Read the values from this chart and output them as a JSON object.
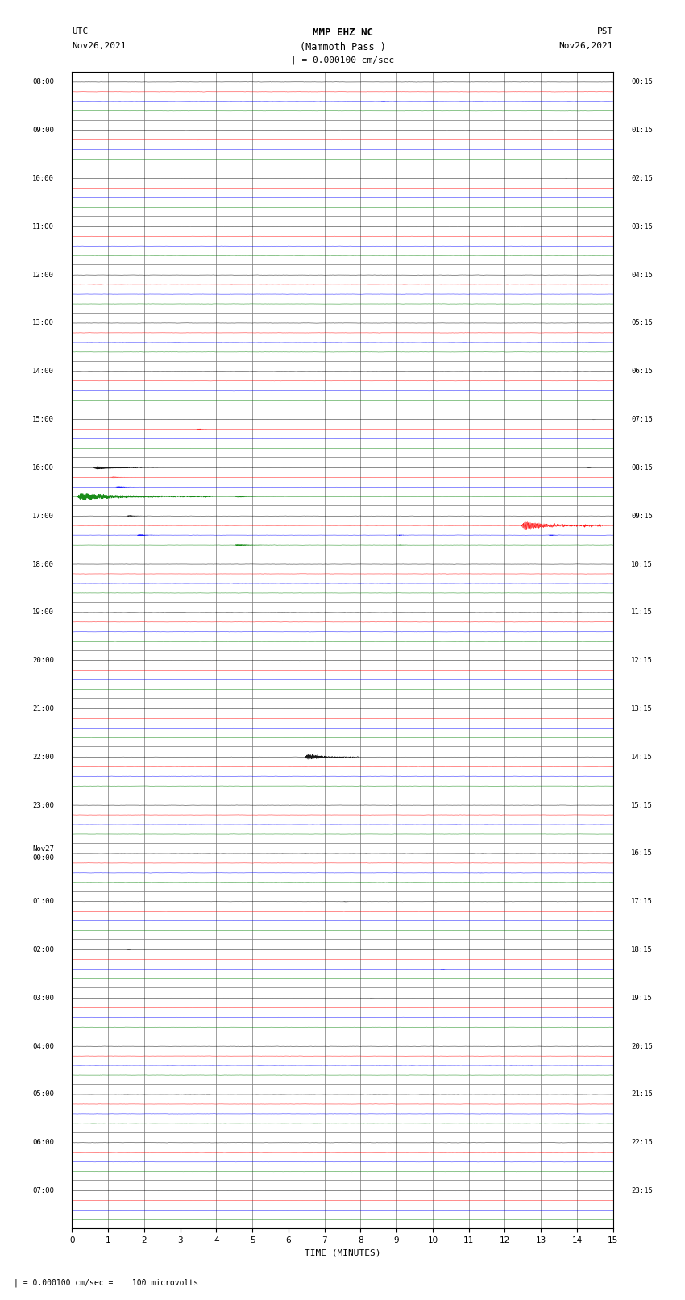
{
  "title_line1": "MMP EHZ NC",
  "title_line2": "(Mammoth Pass )",
  "title_scale": "| = 0.000100 cm/sec",
  "left_label_line1": "UTC",
  "left_label_line2": "Nov26,2021",
  "right_label_line1": "PST",
  "right_label_line2": "Nov26,2021",
  "xlabel": "TIME (MINUTES)",
  "bottom_note": "| = 0.000100 cm/sec =    100 microvolts",
  "utc_times": [
    "08:00",
    "09:00",
    "10:00",
    "11:00",
    "12:00",
    "13:00",
    "14:00",
    "15:00",
    "16:00",
    "17:00",
    "18:00",
    "19:00",
    "20:00",
    "21:00",
    "22:00",
    "23:00",
    "Nov27\n00:00",
    "01:00",
    "02:00",
    "03:00",
    "04:00",
    "05:00",
    "06:00",
    "07:00"
  ],
  "pst_times": [
    "00:15",
    "01:15",
    "02:15",
    "03:15",
    "04:15",
    "05:15",
    "06:15",
    "07:15",
    "08:15",
    "09:15",
    "10:15",
    "11:15",
    "12:15",
    "13:15",
    "14:15",
    "15:15",
    "16:15",
    "17:15",
    "18:15",
    "19:15",
    "20:15",
    "21:15",
    "22:15",
    "23:15"
  ],
  "n_rows": 24,
  "n_traces_per_row": 4,
  "trace_colors": [
    "black",
    "red",
    "blue",
    "green"
  ],
  "minutes_per_row": 15,
  "bg_color": "white",
  "grid_color": "#777777",
  "plot_bg": "white",
  "noise_scale": 0.006,
  "trace_offsets": [
    0.78,
    0.58,
    0.38,
    0.18
  ],
  "signal_scale": 0.15
}
